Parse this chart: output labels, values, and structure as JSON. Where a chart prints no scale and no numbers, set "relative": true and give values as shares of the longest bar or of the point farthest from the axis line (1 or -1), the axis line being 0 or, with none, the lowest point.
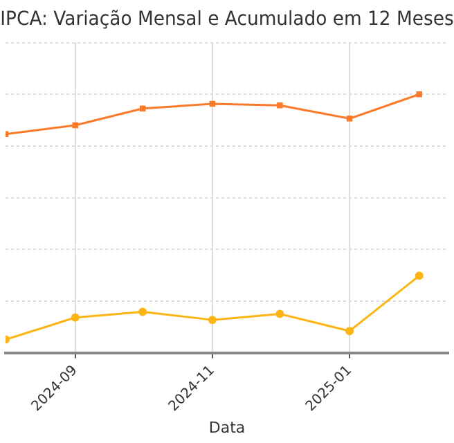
{
  "chart_data": {
    "type": "line",
    "title": "IPCA: Variação Mensal e Acumulado em 12 Meses",
    "xlabel": "Data",
    "relative": true,
    "x": [
      "2024-08",
      "2024-09",
      "2024-10",
      "2024-11",
      "2024-12",
      "2025-01",
      "2025-02"
    ],
    "xlim": [
      "2024-08",
      "2025-02-14"
    ],
    "xticks": [
      "2024-09",
      "2024-11",
      "2025-01"
    ],
    "series": [
      {
        "color": "#fb7a29",
        "marker": "square",
        "values": [
          0.846,
          0.88,
          0.945,
          0.963,
          0.957,
          0.906,
          1
        ]
      },
      {
        "color": "#fcb514",
        "marker": "circle",
        "values": [
          0.051,
          0.136,
          0.158,
          0.127,
          0.15,
          0.084,
          0.298
        ]
      }
    ],
    "grid": true,
    "legend": false,
    "line_style": "solid"
  }
}
